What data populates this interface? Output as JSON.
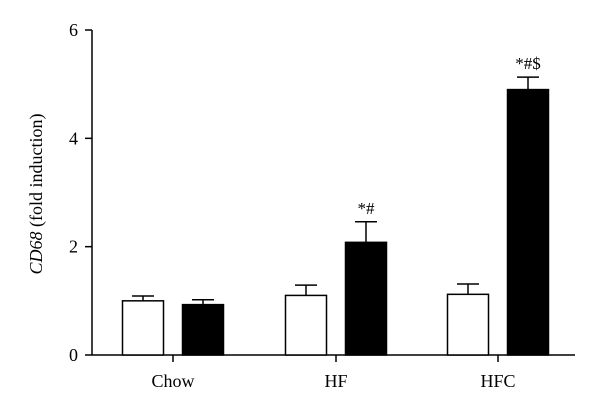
{
  "chart_data": {
    "type": "bar",
    "title": "",
    "xlabel": "",
    "ylabel_italic": "CD68",
    "ylabel_rest": " (fold induction)",
    "ylim": [
      0,
      6
    ],
    "yticks": [
      "0",
      "2",
      "4",
      "6"
    ],
    "categories": [
      "Chow",
      "HF",
      "HFC"
    ],
    "series": [
      {
        "fill": "#ffffff",
        "values": [
          1.0,
          1.1,
          1.12
        ],
        "errors": [
          0.09,
          0.19,
          0.19
        ]
      },
      {
        "fill": "#000000",
        "values": [
          0.93,
          2.08,
          4.9
        ],
        "errors": [
          0.09,
          0.38,
          0.23
        ]
      }
    ],
    "annotations": [
      {
        "category": "HF",
        "series": 1,
        "text": "*#"
      },
      {
        "category": "HFC",
        "series": 1,
        "text": "*#$"
      }
    ]
  }
}
